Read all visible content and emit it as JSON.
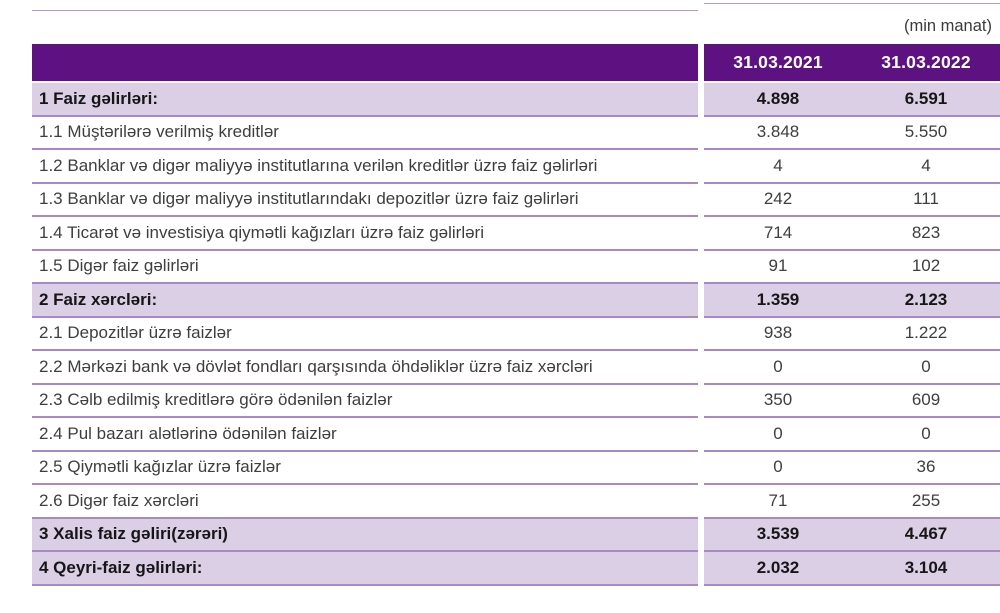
{
  "unit_note": "(min manat)",
  "columns": [
    "31.03.2021",
    "31.03.2022"
  ],
  "rows": [
    {
      "label": "1 Faiz gəlirləri:",
      "values": [
        "4.898",
        "6.591"
      ],
      "section": true
    },
    {
      "label": "1.1 Müştərilərə verilmiş kreditlər",
      "values": [
        "3.848",
        "5.550"
      ],
      "section": false
    },
    {
      "label": "1.2 Banklar və digər maliyyə institutlarına verilən kreditlər üzrə faiz gəlirləri",
      "values": [
        "4",
        "4"
      ],
      "section": false
    },
    {
      "label": "1.3 Banklar və digər maliyyə institutlarındakı depozitlər üzrə faiz gəlirləri",
      "values": [
        "242",
        "111"
      ],
      "section": false
    },
    {
      "label": "1.4 Ticarət və investisiya qiymətli kağızları üzrə faiz gəlirləri",
      "values": [
        "714",
        "823"
      ],
      "section": false
    },
    {
      "label": "1.5 Digər faiz gəlirləri",
      "values": [
        "91",
        "102"
      ],
      "section": false
    },
    {
      "label": "2 Faiz xərcləri:",
      "values": [
        "1.359",
        "2.123"
      ],
      "section": true
    },
    {
      "label": "2.1 Depozitlər üzrə faizlər",
      "values": [
        "938",
        "1.222"
      ],
      "section": false
    },
    {
      "label": "2.2 Mərkəzi bank və dövlət fondları qarşısında öhdəliklər üzrə faiz xərcləri",
      "values": [
        "0",
        "0"
      ],
      "section": false
    },
    {
      "label": "2.3 Cəlb edilmiş kreditlərə görə ödənilən faizlər",
      "values": [
        "350",
        "609"
      ],
      "section": false
    },
    {
      "label": "2.4 Pul bazarı alətlərinə ödənilən faizlər",
      "values": [
        "0",
        "0"
      ],
      "section": false
    },
    {
      "label": "2.5 Qiymətli kağızlar üzrə faizlər",
      "values": [
        "0",
        "36"
      ],
      "section": false
    },
    {
      "label": "2.6 Digər faiz xərcləri",
      "values": [
        "71",
        "255"
      ],
      "section": false
    },
    {
      "label": "3 Xalis faiz gəliri(zərəri)",
      "values": [
        "3.539",
        "4.467"
      ],
      "section": true
    },
    {
      "label": "4 Qeyri-faiz gəlirləri:",
      "values": [
        "2.032",
        "3.104"
      ],
      "section": true
    }
  ],
  "colors": {
    "header_bg": "#5e1180",
    "section_row_bg": "#dbcfe6",
    "separator": "#a988c7",
    "top_line": "#bb96ce"
  }
}
